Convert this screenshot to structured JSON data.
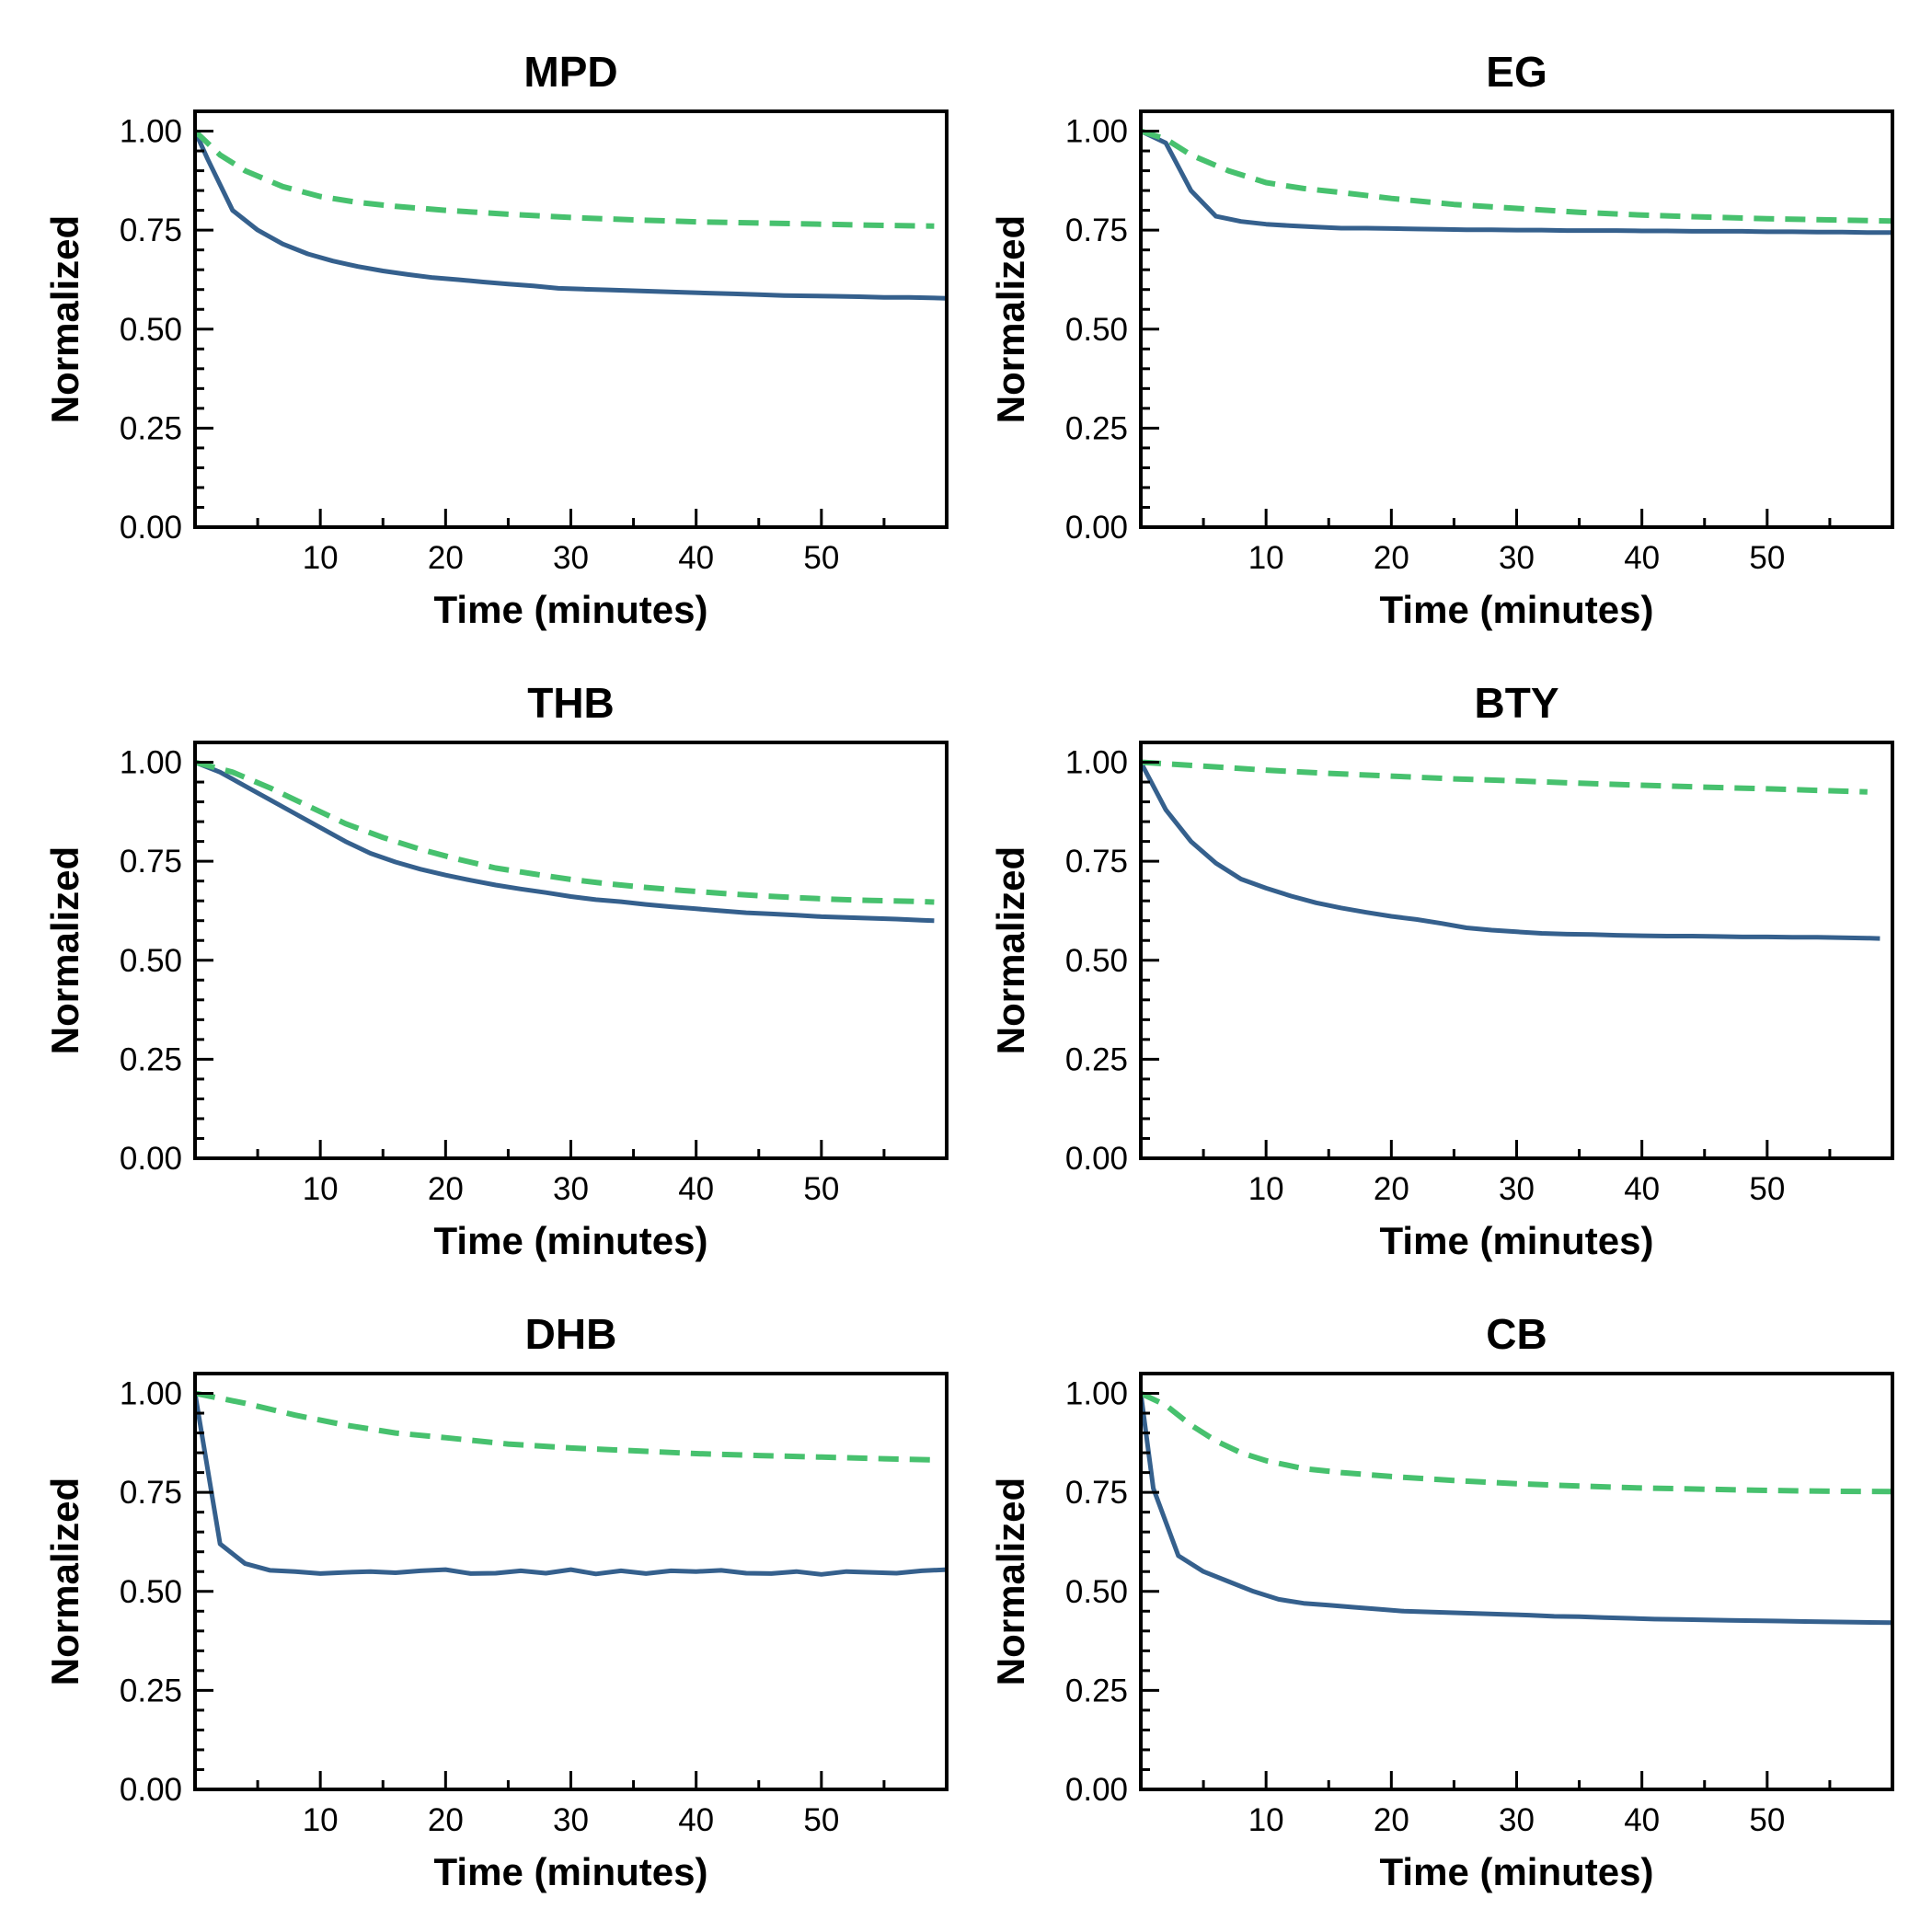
{
  "colors": {
    "solid": "#35608d",
    "dashed": "#47c16e"
  },
  "chart_data": [
    {
      "type": "line",
      "title": "MPD",
      "xlabel": "Time (minutes)",
      "ylabel": "Normalized",
      "xlim": [
        0,
        60
      ],
      "ylim": [
        0,
        1.05
      ],
      "xticks": [
        "10",
        "20",
        "30",
        "40",
        "50"
      ],
      "yticks": [
        "0.00",
        "0.25",
        "0.50",
        "0.75",
        "1.00"
      ],
      "series": [
        {
          "style": "solid",
          "x": [
            0,
            1,
            3,
            5,
            7,
            9,
            11,
            13,
            15,
            17,
            19,
            21,
            23,
            25,
            27,
            29,
            31,
            33,
            35,
            37,
            39,
            41,
            43,
            45,
            47,
            49,
            51,
            53,
            55,
            57,
            60
          ],
          "y": [
            1.0,
            0.93,
            0.8,
            0.75,
            0.715,
            0.69,
            0.672,
            0.658,
            0.647,
            0.638,
            0.63,
            0.625,
            0.619,
            0.614,
            0.609,
            0.603,
            0.601,
            0.599,
            0.597,
            0.595,
            0.593,
            0.591,
            0.589,
            0.587,
            0.585,
            0.584,
            0.583,
            0.582,
            0.58,
            0.58,
            0.578
          ]
        },
        {
          "style": "dashed",
          "x": [
            0,
            2,
            4,
            7,
            10,
            13,
            16,
            20,
            25,
            30,
            35,
            40,
            45,
            50,
            55,
            59
          ],
          "y": [
            1.0,
            0.94,
            0.9,
            0.86,
            0.835,
            0.82,
            0.81,
            0.8,
            0.79,
            0.782,
            0.776,
            0.771,
            0.768,
            0.765,
            0.762,
            0.76
          ]
        }
      ]
    },
    {
      "type": "line",
      "title": "EG",
      "xlabel": "Time (minutes)",
      "ylabel": "Normalized",
      "xlim": [
        0,
        60
      ],
      "ylim": [
        0,
        1.05
      ],
      "xticks": [
        "10",
        "20",
        "30",
        "40",
        "50"
      ],
      "yticks": [
        "0.00",
        "0.25",
        "0.50",
        "0.75",
        "1.00"
      ],
      "series": [
        {
          "style": "solid",
          "x": [
            0,
            2,
            4,
            6,
            8,
            10,
            12,
            14,
            16,
            18,
            20,
            22,
            24,
            26,
            28,
            30,
            32,
            34,
            36,
            38,
            40,
            42,
            44,
            46,
            48,
            50,
            52,
            54,
            56,
            58,
            60
          ],
          "y": [
            1.0,
            0.97,
            0.85,
            0.785,
            0.772,
            0.765,
            0.761,
            0.758,
            0.755,
            0.755,
            0.754,
            0.753,
            0.752,
            0.751,
            0.751,
            0.75,
            0.75,
            0.749,
            0.749,
            0.749,
            0.748,
            0.748,
            0.747,
            0.747,
            0.747,
            0.746,
            0.746,
            0.745,
            0.745,
            0.744,
            0.744
          ]
        },
        {
          "style": "dashed",
          "x": [
            0,
            2,
            4,
            7,
            10,
            13,
            16,
            20,
            25,
            30,
            35,
            40,
            45,
            50,
            55,
            60
          ],
          "y": [
            1.0,
            0.98,
            0.94,
            0.9,
            0.87,
            0.855,
            0.845,
            0.83,
            0.815,
            0.805,
            0.795,
            0.788,
            0.783,
            0.779,
            0.776,
            0.773
          ]
        }
      ]
    },
    {
      "type": "line",
      "title": "THB",
      "xlabel": "Time (minutes)",
      "ylabel": "Normalized",
      "xlim": [
        0,
        60
      ],
      "ylim": [
        0,
        1.05
      ],
      "xticks": [
        "10",
        "20",
        "30",
        "40",
        "50"
      ],
      "yticks": [
        "0.00",
        "0.25",
        "0.50",
        "0.75",
        "1.00"
      ],
      "series": [
        {
          "style": "solid",
          "x": [
            0,
            2,
            4,
            6,
            8,
            10,
            12,
            14,
            16,
            18,
            20,
            22,
            24,
            26,
            28,
            30,
            32,
            34,
            36,
            38,
            40,
            42,
            44,
            46,
            48,
            50,
            52,
            54,
            56,
            58,
            59
          ],
          "y": [
            1.0,
            0.975,
            0.94,
            0.905,
            0.87,
            0.835,
            0.8,
            0.77,
            0.748,
            0.73,
            0.715,
            0.702,
            0.69,
            0.68,
            0.671,
            0.661,
            0.653,
            0.648,
            0.641,
            0.635,
            0.63,
            0.625,
            0.62,
            0.617,
            0.614,
            0.61,
            0.608,
            0.606,
            0.604,
            0.601,
            0.6
          ]
        },
        {
          "style": "dashed",
          "x": [
            0,
            3,
            6,
            9,
            12,
            15,
            18,
            21,
            24,
            27,
            30,
            33,
            36,
            39,
            42,
            45,
            48,
            51,
            54,
            57,
            59
          ],
          "y": [
            1.0,
            0.975,
            0.935,
            0.89,
            0.845,
            0.81,
            0.78,
            0.755,
            0.733,
            0.718,
            0.704,
            0.693,
            0.684,
            0.676,
            0.669,
            0.663,
            0.658,
            0.654,
            0.651,
            0.649,
            0.647
          ]
        }
      ]
    },
    {
      "type": "line",
      "title": "BTY",
      "xlabel": "Time (minutes)",
      "ylabel": "Normalized",
      "xlim": [
        0,
        60
      ],
      "ylim": [
        0,
        1.05
      ],
      "xticks": [
        "10",
        "20",
        "30",
        "40",
        "50"
      ],
      "yticks": [
        "0.00",
        "0.25",
        "0.50",
        "0.75",
        "1.00"
      ],
      "series": [
        {
          "style": "solid",
          "x": [
            0,
            2,
            4,
            6,
            8,
            10,
            12,
            14,
            16,
            18,
            20,
            22,
            24,
            26,
            28,
            30,
            32,
            34,
            36,
            38,
            40,
            42,
            44,
            46,
            48,
            50,
            52,
            54,
            56,
            58,
            59
          ],
          "y": [
            1.0,
            0.88,
            0.8,
            0.745,
            0.705,
            0.682,
            0.662,
            0.645,
            0.632,
            0.621,
            0.611,
            0.603,
            0.593,
            0.582,
            0.576,
            0.572,
            0.568,
            0.566,
            0.565,
            0.563,
            0.562,
            0.561,
            0.561,
            0.56,
            0.559,
            0.559,
            0.558,
            0.558,
            0.557,
            0.556,
            0.555
          ]
        },
        {
          "style": "dashed",
          "x": [
            0,
            5,
            10,
            15,
            20,
            25,
            30,
            35,
            40,
            45,
            50,
            55,
            58
          ],
          "y": [
            1.0,
            0.99,
            0.98,
            0.972,
            0.965,
            0.958,
            0.953,
            0.947,
            0.942,
            0.937,
            0.933,
            0.928,
            0.925
          ]
        }
      ]
    },
    {
      "type": "line",
      "title": "DHB",
      "xlabel": "Time (minutes)",
      "ylabel": "Normalized",
      "xlim": [
        0,
        60
      ],
      "ylim": [
        0,
        1.05
      ],
      "xticks": [
        "10",
        "20",
        "30",
        "40",
        "50"
      ],
      "yticks": [
        "0.00",
        "0.25",
        "0.50",
        "0.75",
        "1.00"
      ],
      "series": [
        {
          "style": "solid",
          "x": [
            0,
            2,
            4,
            6,
            8,
            10,
            12,
            14,
            16,
            18,
            20,
            22,
            24,
            26,
            28,
            30,
            32,
            34,
            36,
            38,
            40,
            42,
            44,
            46,
            48,
            50,
            52,
            54,
            56,
            58,
            60
          ],
          "y": [
            1.0,
            0.62,
            0.57,
            0.553,
            0.55,
            0.545,
            0.548,
            0.55,
            0.547,
            0.552,
            0.555,
            0.545,
            0.546,
            0.552,
            0.546,
            0.555,
            0.544,
            0.552,
            0.545,
            0.552,
            0.55,
            0.553,
            0.546,
            0.545,
            0.55,
            0.543,
            0.55,
            0.548,
            0.546,
            0.552,
            0.555
          ]
        },
        {
          "style": "dashed",
          "x": [
            0,
            4,
            8,
            12,
            16,
            20,
            25,
            30,
            35,
            40,
            45,
            50,
            55,
            59
          ],
          "y": [
            1.0,
            0.975,
            0.945,
            0.92,
            0.9,
            0.888,
            0.872,
            0.862,
            0.855,
            0.848,
            0.843,
            0.839,
            0.835,
            0.832
          ]
        }
      ]
    },
    {
      "type": "line",
      "title": "CB",
      "xlabel": "Time (minutes)",
      "ylabel": "Normalized",
      "xlim": [
        0,
        60
      ],
      "ylim": [
        0,
        1.05
      ],
      "xticks": [
        "10",
        "20",
        "30",
        "40",
        "50"
      ],
      "yticks": [
        "0.00",
        "0.25",
        "0.50",
        "0.75",
        "1.00"
      ],
      "series": [
        {
          "style": "solid",
          "x": [
            0,
            1,
            3,
            5,
            7,
            9,
            11,
            13,
            15,
            17,
            19,
            21,
            23,
            25,
            27,
            29,
            31,
            33,
            35,
            37,
            39,
            41,
            43,
            45,
            47,
            49,
            51,
            53,
            55,
            57,
            60
          ],
          "y": [
            1.0,
            0.76,
            0.59,
            0.55,
            0.525,
            0.5,
            0.48,
            0.47,
            0.465,
            0.46,
            0.455,
            0.45,
            0.448,
            0.446,
            0.444,
            0.442,
            0.44,
            0.437,
            0.436,
            0.434,
            0.432,
            0.43,
            0.429,
            0.428,
            0.427,
            0.426,
            0.425,
            0.424,
            0.423,
            0.422,
            0.421
          ]
        },
        {
          "style": "dashed",
          "x": [
            0,
            2,
            4,
            6,
            8,
            10,
            13,
            16,
            20,
            25,
            30,
            35,
            40,
            45,
            50,
            55,
            60
          ],
          "y": [
            1.0,
            0.97,
            0.92,
            0.88,
            0.85,
            0.83,
            0.81,
            0.8,
            0.79,
            0.78,
            0.772,
            0.766,
            0.761,
            0.758,
            0.755,
            0.753,
            0.752
          ]
        }
      ]
    }
  ]
}
